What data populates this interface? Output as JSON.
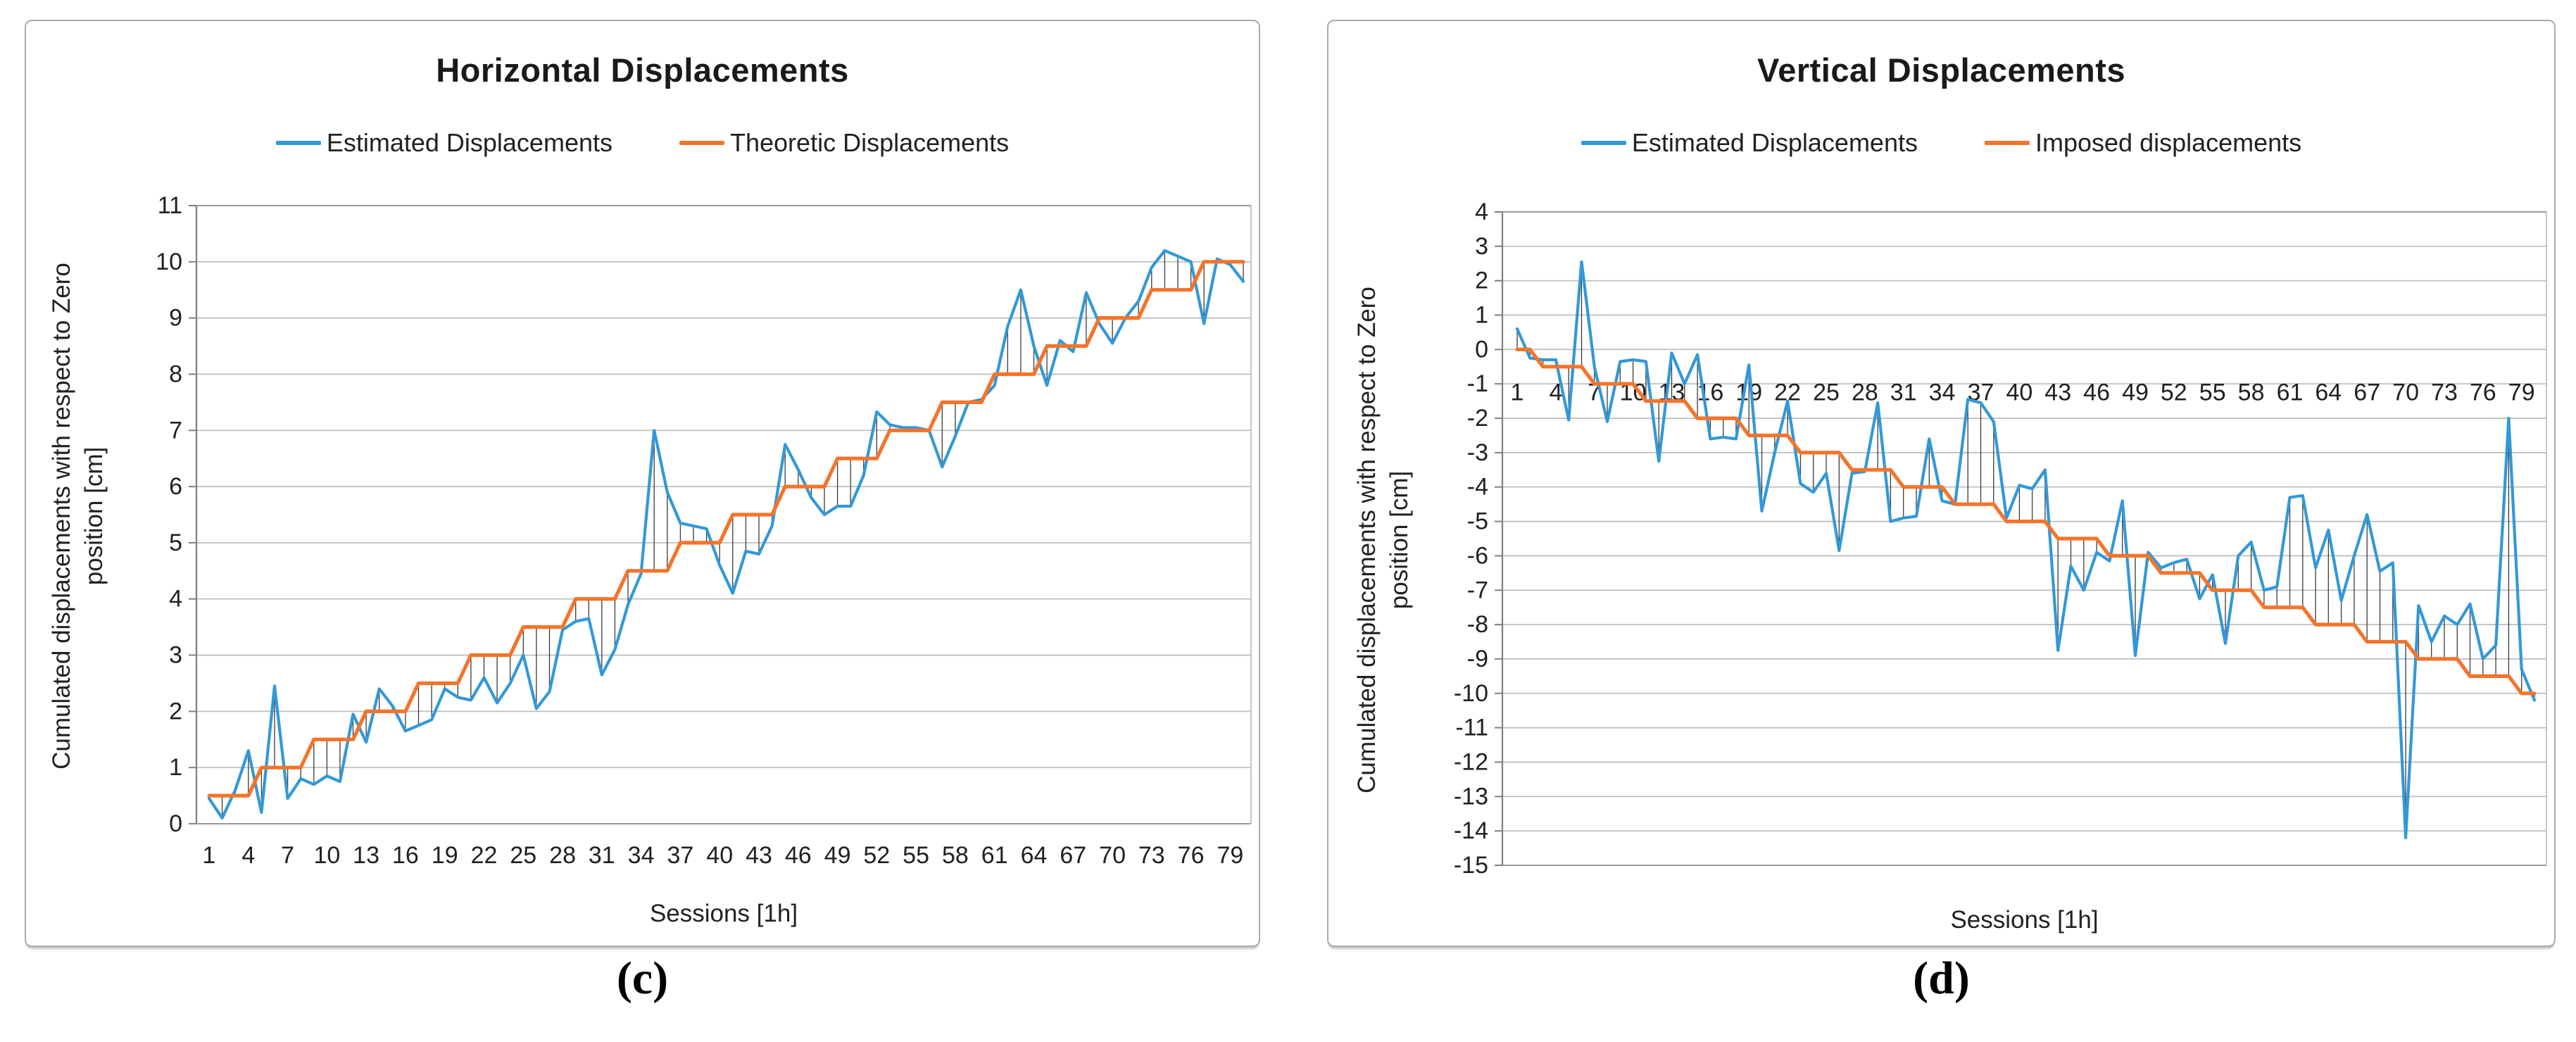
{
  "captions": {
    "c": "(c)",
    "d": "(d)"
  },
  "panels": {
    "horizontal": {
      "title": "Horizontal Displacements",
      "x_axis_title": "Sessions [1h]",
      "y_axis_title_line1": "Cumulated displacements with respect to Zero",
      "y_axis_title_line2": "position [cm]",
      "legend": [
        {
          "label": "Estimated Displacements",
          "color": "#3398d8"
        },
        {
          "label": "Theoretic Displacements",
          "color": "#f4742b"
        }
      ]
    },
    "vertical": {
      "title": "Vertical Displacements",
      "x_axis_title": "Sessions [1h]",
      "y_axis_title_line1": "Cumulated displacements with respect to Zero",
      "y_axis_title_line2": "position [cm]",
      "legend": [
        {
          "label": "Estimated Displacements",
          "color": "#3398d8"
        },
        {
          "label": "Imposed displacements",
          "color": "#f4742b"
        }
      ]
    }
  },
  "chart_data": [
    {
      "id": "horizontal",
      "type": "line",
      "title": "Horizontal Displacements",
      "xlabel": "Sessions [1h]",
      "ylabel": "Cumulated displacements with respect to Zero position [cm]",
      "x": [
        1,
        2,
        3,
        4,
        5,
        6,
        7,
        8,
        9,
        10,
        11,
        12,
        13,
        14,
        15,
        16,
        17,
        18,
        19,
        20,
        21,
        22,
        23,
        24,
        25,
        26,
        27,
        28,
        29,
        30,
        31,
        32,
        33,
        34,
        35,
        36,
        37,
        38,
        39,
        40,
        41,
        42,
        43,
        44,
        45,
        46,
        47,
        48,
        49,
        50,
        51,
        52,
        53,
        54,
        55,
        56,
        57,
        58,
        59,
        60,
        61,
        62,
        63,
        64,
        65,
        66,
        67,
        68,
        69,
        70,
        71,
        72,
        73,
        74,
        75,
        76,
        77,
        78,
        79,
        80
      ],
      "x_tick_labels": [
        1,
        4,
        7,
        10,
        13,
        16,
        19,
        22,
        25,
        28,
        31,
        34,
        37,
        40,
        43,
        46,
        49,
        52,
        55,
        58,
        61,
        64,
        67,
        70,
        73,
        76,
        79
      ],
      "ylim": [
        0,
        11
      ],
      "y_tick_interval": 1,
      "grid": true,
      "high_low_lines": true,
      "legend_position": "top",
      "series": [
        {
          "name": "Estimated Displacements",
          "color": "#3398d8",
          "values": [
            0.45,
            0.1,
            0.6,
            1.3,
            0.2,
            2.45,
            0.45,
            0.8,
            0.7,
            0.85,
            0.75,
            1.95,
            1.45,
            2.4,
            2.1,
            1.65,
            1.75,
            1.85,
            2.4,
            2.25,
            2.2,
            2.6,
            2.15,
            2.5,
            3.0,
            2.05,
            2.35,
            3.45,
            3.6,
            3.65,
            2.65,
            3.1,
            3.9,
            4.45,
            7.0,
            5.9,
            5.35,
            5.3,
            5.25,
            4.6,
            4.1,
            4.85,
            4.8,
            5.3,
            6.75,
            6.3,
            5.8,
            5.5,
            5.65,
            5.65,
            6.2,
            7.33,
            7.1,
            7.05,
            7.05,
            7.0,
            6.35,
            6.9,
            7.5,
            7.55,
            7.8,
            8.85,
            9.5,
            8.5,
            7.8,
            8.6,
            8.4,
            9.45,
            8.9,
            8.55,
            9.0,
            9.3,
            9.9,
            10.2,
            10.1,
            10.0,
            8.9,
            10.05,
            9.95,
            9.65
          ]
        },
        {
          "name": "Theoretic Displacements",
          "color": "#f4742b",
          "values": [
            0.5,
            0.5,
            0.5,
            0.5,
            1,
            1,
            1,
            1,
            1.5,
            1.5,
            1.5,
            1.5,
            2,
            2,
            2,
            2,
            2.5,
            2.5,
            2.5,
            2.5,
            3,
            3,
            3,
            3,
            3.5,
            3.5,
            3.5,
            3.5,
            4,
            4,
            4,
            4,
            4.5,
            4.5,
            4.5,
            4.5,
            5,
            5,
            5,
            5,
            5.5,
            5.5,
            5.5,
            5.5,
            6,
            6,
            6,
            6,
            6.5,
            6.5,
            6.5,
            6.5,
            7,
            7,
            7,
            7,
            7.5,
            7.5,
            7.5,
            7.5,
            8,
            8,
            8,
            8,
            8.5,
            8.5,
            8.5,
            8.5,
            9,
            9,
            9,
            9,
            9.5,
            9.5,
            9.5,
            9.5,
            10,
            10,
            10,
            10
          ]
        }
      ]
    },
    {
      "id": "vertical",
      "type": "line",
      "title": "Vertical Displacements",
      "xlabel": "Sessions [1h]",
      "ylabel": "Cumulated displacements with respect to Zero position [cm]",
      "x": [
        1,
        2,
        3,
        4,
        5,
        6,
        7,
        8,
        9,
        10,
        11,
        12,
        13,
        14,
        15,
        16,
        17,
        18,
        19,
        20,
        21,
        22,
        23,
        24,
        25,
        26,
        27,
        28,
        29,
        30,
        31,
        32,
        33,
        34,
        35,
        36,
        37,
        38,
        39,
        40,
        41,
        42,
        43,
        44,
        45,
        46,
        47,
        48,
        49,
        50,
        51,
        52,
        53,
        54,
        55,
        56,
        57,
        58,
        59,
        60,
        61,
        62,
        63,
        64,
        65,
        66,
        67,
        68,
        69,
        70,
        71,
        72,
        73,
        74,
        75,
        76,
        77,
        78,
        79,
        80
      ],
      "x_tick_labels": [
        1,
        4,
        7,
        10,
        13,
        16,
        19,
        22,
        25,
        28,
        31,
        34,
        37,
        40,
        43,
        46,
        49,
        52,
        55,
        58,
        61,
        64,
        67,
        70,
        73,
        76,
        79
      ],
      "ylim": [
        -15,
        4
      ],
      "y_tick_interval": 1,
      "grid": true,
      "high_low_lines": true,
      "legend_position": "top",
      "series": [
        {
          "name": "Estimated Displacements",
          "color": "#3398d8",
          "values": [
            0.6,
            -0.25,
            -0.3,
            -0.3,
            -2.05,
            2.55,
            -0.5,
            -2.1,
            -0.35,
            -0.3,
            -0.35,
            -3.25,
            -0.1,
            -1.0,
            -0.15,
            -2.6,
            -2.55,
            -2.6,
            -0.45,
            -4.7,
            -3.0,
            -1.5,
            -3.9,
            -4.15,
            -3.6,
            -5.85,
            -3.6,
            -3.55,
            -1.55,
            -5.0,
            -4.9,
            -4.85,
            -2.6,
            -4.4,
            -4.5,
            -1.45,
            -1.55,
            -2.1,
            -4.9,
            -3.95,
            -4.05,
            -3.5,
            -8.75,
            -6.3,
            -7.0,
            -5.9,
            -6.15,
            -4.4,
            -8.9,
            -5.9,
            -6.35,
            -6.2,
            -6.1,
            -7.25,
            -6.55,
            -8.55,
            -6.0,
            -5.6,
            -7.0,
            -6.9,
            -4.3,
            -4.25,
            -6.35,
            -5.25,
            -7.3,
            -6.0,
            -4.8,
            -6.45,
            -6.2,
            -14.2,
            -7.45,
            -8.5,
            -7.75,
            -8.0,
            -7.4,
            -9.0,
            -8.6,
            -2.0,
            -9.3,
            -10.2
          ]
        },
        {
          "name": "Imposed displacements",
          "color": "#f4742b",
          "values": [
            0,
            0,
            -0.5,
            -0.5,
            -0.5,
            -0.5,
            -1,
            -1,
            -1,
            -1,
            -1.5,
            -1.5,
            -1.5,
            -1.5,
            -2,
            -2,
            -2,
            -2,
            -2.5,
            -2.5,
            -2.5,
            -2.5,
            -3,
            -3,
            -3,
            -3,
            -3.5,
            -3.5,
            -3.5,
            -3.5,
            -4,
            -4,
            -4,
            -4,
            -4.5,
            -4.5,
            -4.5,
            -4.5,
            -5,
            -5,
            -5,
            -5,
            -5.5,
            -5.5,
            -5.5,
            -5.5,
            -6,
            -6,
            -6,
            -6,
            -6.5,
            -6.5,
            -6.5,
            -6.5,
            -7,
            -7,
            -7,
            -7,
            -7.5,
            -7.5,
            -7.5,
            -7.5,
            -8,
            -8,
            -8,
            -8,
            -8.5,
            -8.5,
            -8.5,
            -8.5,
            -9,
            -9,
            -9,
            -9,
            -9.5,
            -9.5,
            -9.5,
            -9.5,
            -10,
            -10
          ]
        }
      ]
    }
  ]
}
